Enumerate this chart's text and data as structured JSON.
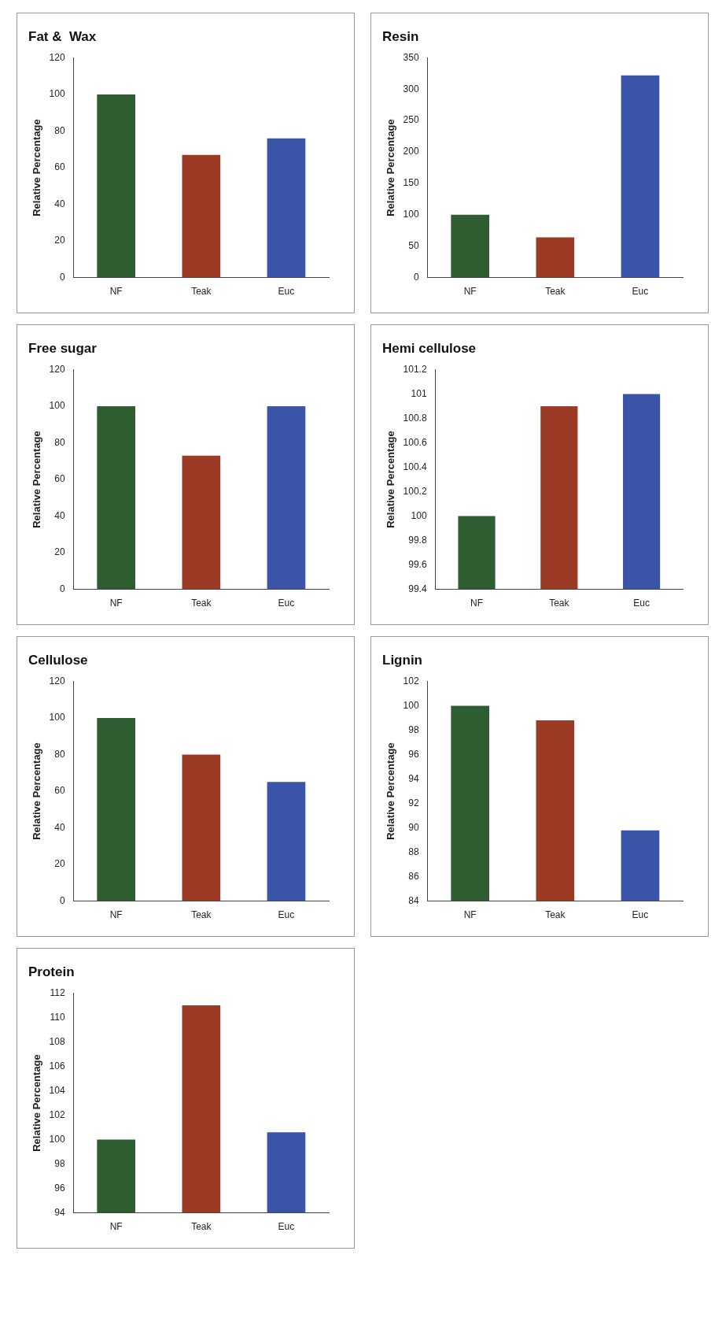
{
  "chart_data": [
    {
      "type": "bar",
      "title": "Fat &  Wax",
      "ylabel": "Relative Percentage",
      "categories": [
        "NF",
        "Teak",
        "Euc"
      ],
      "values": [
        100,
        67,
        76
      ],
      "colors": [
        "#2f5d32",
        "#9b3b26",
        "#3a55a8"
      ],
      "ylim": [
        0,
        120
      ],
      "yticks": [
        0,
        20,
        40,
        60,
        80,
        100,
        120
      ],
      "grid": false,
      "legend": false
    },
    {
      "type": "bar",
      "title": "Resin",
      "ylabel": "Relative Percentage",
      "categories": [
        "NF",
        "Teak",
        "Euc"
      ],
      "values": [
        100,
        64,
        322
      ],
      "colors": [
        "#2f5d32",
        "#9b3b26",
        "#3a55a8"
      ],
      "ylim": [
        0,
        350
      ],
      "yticks": [
        0,
        50,
        100,
        150,
        200,
        250,
        300,
        350
      ],
      "grid": false,
      "legend": false
    },
    {
      "type": "bar",
      "title": "Free sugar",
      "ylabel": "Relative Percentage",
      "categories": [
        "NF",
        "Teak",
        "Euc"
      ],
      "values": [
        100,
        73,
        100
      ],
      "colors": [
        "#2f5d32",
        "#9b3b26",
        "#3a55a8"
      ],
      "ylim": [
        0,
        120
      ],
      "yticks": [
        0,
        20,
        40,
        60,
        80,
        100,
        120
      ],
      "grid": false,
      "legend": false
    },
    {
      "type": "bar",
      "title": "Hemi cellulose",
      "ylabel": "Relative Percentage",
      "categories": [
        "NF",
        "Teak",
        "Euc"
      ],
      "values": [
        100,
        100.9,
        101
      ],
      "colors": [
        "#2f5d32",
        "#9b3b26",
        "#3a55a8"
      ],
      "ylim": [
        99.4,
        101.2
      ],
      "yticks": [
        99.4,
        99.6,
        99.8,
        100,
        100.2,
        100.4,
        100.6,
        100.8,
        101,
        101.2
      ],
      "grid": false,
      "legend": false
    },
    {
      "type": "bar",
      "title": "Cellulose",
      "ylabel": "Relative Percentage",
      "categories": [
        "NF",
        "Teak",
        "Euc"
      ],
      "values": [
        100,
        80,
        65
      ],
      "colors": [
        "#2f5d32",
        "#9b3b26",
        "#3a55a8"
      ],
      "ylim": [
        0,
        120
      ],
      "yticks": [
        0,
        20,
        40,
        60,
        80,
        100,
        120
      ],
      "grid": false,
      "legend": false
    },
    {
      "type": "bar",
      "title": "Lignin",
      "ylabel": "Relative Percentage",
      "categories": [
        "NF",
        "Teak",
        "Euc"
      ],
      "values": [
        100,
        98.8,
        89.8
      ],
      "colors": [
        "#2f5d32",
        "#9b3b26",
        "#3a55a8"
      ],
      "ylim": [
        84,
        102
      ],
      "yticks": [
        84,
        86,
        88,
        90,
        92,
        94,
        96,
        98,
        100,
        102
      ],
      "grid": false,
      "legend": false
    },
    {
      "type": "bar",
      "title": "Protein",
      "ylabel": "Relative Percentage",
      "categories": [
        "NF",
        "Teak",
        "Euc"
      ],
      "values": [
        100,
        111,
        100.6
      ],
      "colors": [
        "#2f5d32",
        "#9b3b26",
        "#3a55a8"
      ],
      "ylim": [
        94,
        112
      ],
      "yticks": [
        94,
        96,
        98,
        100,
        102,
        104,
        106,
        108,
        110,
        112
      ],
      "grid": false,
      "legend": false
    }
  ]
}
